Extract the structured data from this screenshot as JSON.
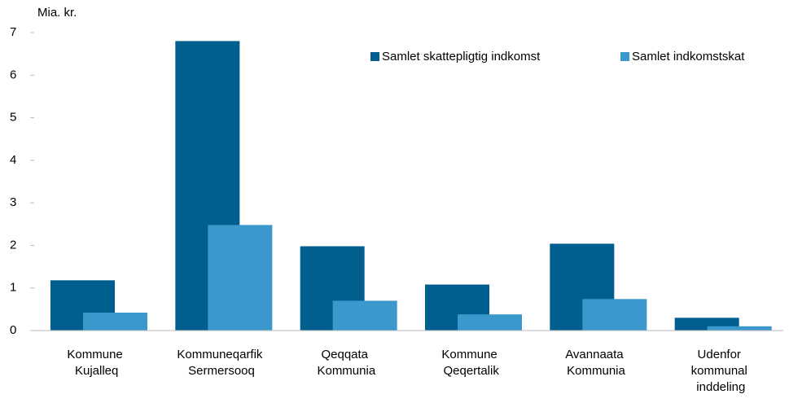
{
  "chart_data": {
    "type": "bar",
    "axis_label": "Mia. kr.",
    "categories": [
      "Kommune Kujalleq",
      "Kommuneqarfik Sermersooq",
      "Qeqqata Kommunia",
      "Kommune Qeqertalik",
      "Avannaata Kommunia",
      "Udenfor kommunal inddeling"
    ],
    "series": [
      {
        "name": "Samlet skattepligtig indkomst",
        "color": "#005f8f",
        "values": [
          1.18,
          6.8,
          1.98,
          1.08,
          2.04,
          0.3
        ]
      },
      {
        "name": "Samlet indkomstskat",
        "color": "#3a98cc",
        "values": [
          0.42,
          2.48,
          0.7,
          0.38,
          0.74,
          0.1
        ]
      }
    ],
    "ylim": [
      0,
      7
    ],
    "yticks": [
      0,
      1,
      2,
      3,
      4,
      5,
      6,
      7
    ],
    "grid": false,
    "legend": "top-right"
  }
}
